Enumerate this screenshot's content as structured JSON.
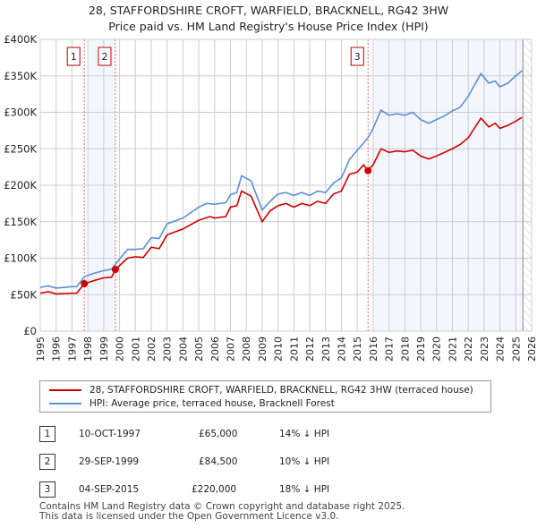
{
  "chart_data": {
    "type": "line",
    "title": "28, STAFFORDSHIRE CROFT, WARFIELD, BRACKNELL, RG42 3HW",
    "subtitle": "Price paid vs. HM Land Registry's House Price Index (HPI)",
    "xlim": [
      1995,
      2026
    ],
    "ylim": [
      0,
      400000
    ],
    "x_ticks": [
      "1995",
      "1996",
      "1997",
      "1998",
      "1999",
      "2000",
      "2001",
      "2002",
      "2003",
      "2004",
      "2005",
      "2006",
      "2007",
      "2008",
      "2009",
      "2010",
      "2011",
      "2012",
      "2013",
      "2014",
      "2015",
      "2016",
      "2017",
      "2018",
      "2019",
      "2020",
      "2021",
      "2022",
      "2023",
      "2024",
      "2025",
      "2026"
    ],
    "y_ticks": [
      {
        "v": 0,
        "label": "£0"
      },
      {
        "v": 50000,
        "label": "£50K"
      },
      {
        "v": 100000,
        "label": "£100K"
      },
      {
        "v": 150000,
        "label": "£150K"
      },
      {
        "v": 200000,
        "label": "£200K"
      },
      {
        "v": 250000,
        "label": "£250K"
      },
      {
        "v": 300000,
        "label": "£300K"
      },
      {
        "v": 350000,
        "label": "£350K"
      },
      {
        "v": 400000,
        "label": "£400K"
      }
    ],
    "grid": true,
    "series": [
      {
        "name": "28, STAFFORDSHIRE CROFT, WARFIELD, BRACKNELL, RG42 3HW (terraced house)",
        "color": "#cc0000",
        "points": [
          [
            1995,
            52
          ],
          [
            1995.5,
            54
          ],
          [
            1996,
            51
          ],
          [
            1997,
            52
          ],
          [
            1997.3,
            52
          ],
          [
            1997.78,
            65
          ],
          [
            1998.5,
            70
          ],
          [
            1999,
            73
          ],
          [
            1999.5,
            74
          ],
          [
            1999.74,
            84.5
          ],
          [
            2000.5,
            100
          ],
          [
            2001,
            102
          ],
          [
            2001.5,
            101
          ],
          [
            2002,
            115
          ],
          [
            2002.5,
            113
          ],
          [
            2003,
            132
          ],
          [
            2004,
            140
          ],
          [
            2005,
            152
          ],
          [
            2005.7,
            157
          ],
          [
            2006,
            155
          ],
          [
            2006.7,
            157
          ],
          [
            2007,
            170
          ],
          [
            2007.4,
            172
          ],
          [
            2007.7,
            192
          ],
          [
            2008.3,
            185
          ],
          [
            2009,
            150
          ],
          [
            2009.5,
            165
          ],
          [
            2010,
            172
          ],
          [
            2010.5,
            175
          ],
          [
            2011,
            170
          ],
          [
            2011.5,
            175
          ],
          [
            2012,
            172
          ],
          [
            2012.5,
            178
          ],
          [
            2013,
            175
          ],
          [
            2013.5,
            188
          ],
          [
            2014,
            192
          ],
          [
            2014.5,
            215
          ],
          [
            2015,
            218
          ],
          [
            2015.4,
            228
          ],
          [
            2015.67,
            220
          ],
          [
            2016,
            228
          ],
          [
            2016.5,
            250
          ],
          [
            2017,
            245
          ],
          [
            2017.5,
            247
          ],
          [
            2018,
            246
          ],
          [
            2018.5,
            248
          ],
          [
            2019,
            240
          ],
          [
            2019.5,
            236
          ],
          [
            2020,
            240
          ],
          [
            2020.5,
            245
          ],
          [
            2021,
            250
          ],
          [
            2021.5,
            256
          ],
          [
            2022,
            265
          ],
          [
            2022.8,
            292
          ],
          [
            2023.3,
            280
          ],
          [
            2023.7,
            285
          ],
          [
            2024,
            278
          ],
          [
            2024.5,
            282
          ],
          [
            2025,
            288
          ],
          [
            2025.4,
            293
          ]
        ]
      },
      {
        "name": "HPI: Average price, terraced house, Bracknell Forest",
        "color": "#5b8fd4",
        "points": [
          [
            1995,
            60
          ],
          [
            1995.5,
            62
          ],
          [
            1996,
            59
          ],
          [
            1997,
            61
          ],
          [
            1997.3,
            61
          ],
          [
            1997.8,
            75
          ],
          [
            1998.5,
            80
          ],
          [
            1999,
            83
          ],
          [
            1999.5,
            85
          ],
          [
            1999.9,
            96
          ],
          [
            2000.5,
            112
          ],
          [
            2001,
            112
          ],
          [
            2001.5,
            113
          ],
          [
            2002,
            128
          ],
          [
            2002.5,
            127
          ],
          [
            2003,
            147
          ],
          [
            2004,
            155
          ],
          [
            2005,
            170
          ],
          [
            2005.5,
            175
          ],
          [
            2006,
            174
          ],
          [
            2006.7,
            176
          ],
          [
            2007,
            187
          ],
          [
            2007.4,
            190
          ],
          [
            2007.7,
            213
          ],
          [
            2008.3,
            206
          ],
          [
            2009,
            166
          ],
          [
            2009.5,
            178
          ],
          [
            2010,
            188
          ],
          [
            2010.5,
            190
          ],
          [
            2011,
            186
          ],
          [
            2011.5,
            190
          ],
          [
            2012,
            186
          ],
          [
            2012.5,
            192
          ],
          [
            2013,
            190
          ],
          [
            2013.5,
            203
          ],
          [
            2014,
            210
          ],
          [
            2014.5,
            235
          ],
          [
            2015,
            248
          ],
          [
            2015.4,
            258
          ],
          [
            2015.7,
            266
          ],
          [
            2016,
            278
          ],
          [
            2016.5,
            303
          ],
          [
            2017,
            296
          ],
          [
            2017.5,
            298
          ],
          [
            2018,
            296
          ],
          [
            2018.5,
            300
          ],
          [
            2019,
            290
          ],
          [
            2019.5,
            285
          ],
          [
            2020,
            290
          ],
          [
            2020.5,
            295
          ],
          [
            2021,
            302
          ],
          [
            2021.5,
            307
          ],
          [
            2022,
            322
          ],
          [
            2022.8,
            353
          ],
          [
            2023.3,
            340
          ],
          [
            2023.7,
            343
          ],
          [
            2024,
            335
          ],
          [
            2024.5,
            340
          ],
          [
            2025,
            350
          ],
          [
            2025.4,
            357
          ]
        ]
      }
    ],
    "markers": [
      {
        "label": "1",
        "x": 1997.78,
        "y": 65000
      },
      {
        "label": "2",
        "x": 1999.74,
        "y": 84500
      },
      {
        "label": "3",
        "x": 2015.68,
        "y": 220000
      }
    ],
    "legend_position": "below"
  },
  "transactions": [
    {
      "num": "1",
      "date": "10-OCT-1997",
      "price": "£65,000",
      "hpi": "14% ↓ HPI"
    },
    {
      "num": "2",
      "date": "29-SEP-1999",
      "price": "£84,500",
      "hpi": "10% ↓ HPI"
    },
    {
      "num": "3",
      "date": "04-SEP-2015",
      "price": "£220,000",
      "hpi": "18% ↓ HPI"
    }
  ],
  "footer": {
    "line1": "Contains HM Land Registry data © Crown copyright and database right 2025.",
    "line2": "This data is licensed under the Open Government Licence v3.0."
  }
}
